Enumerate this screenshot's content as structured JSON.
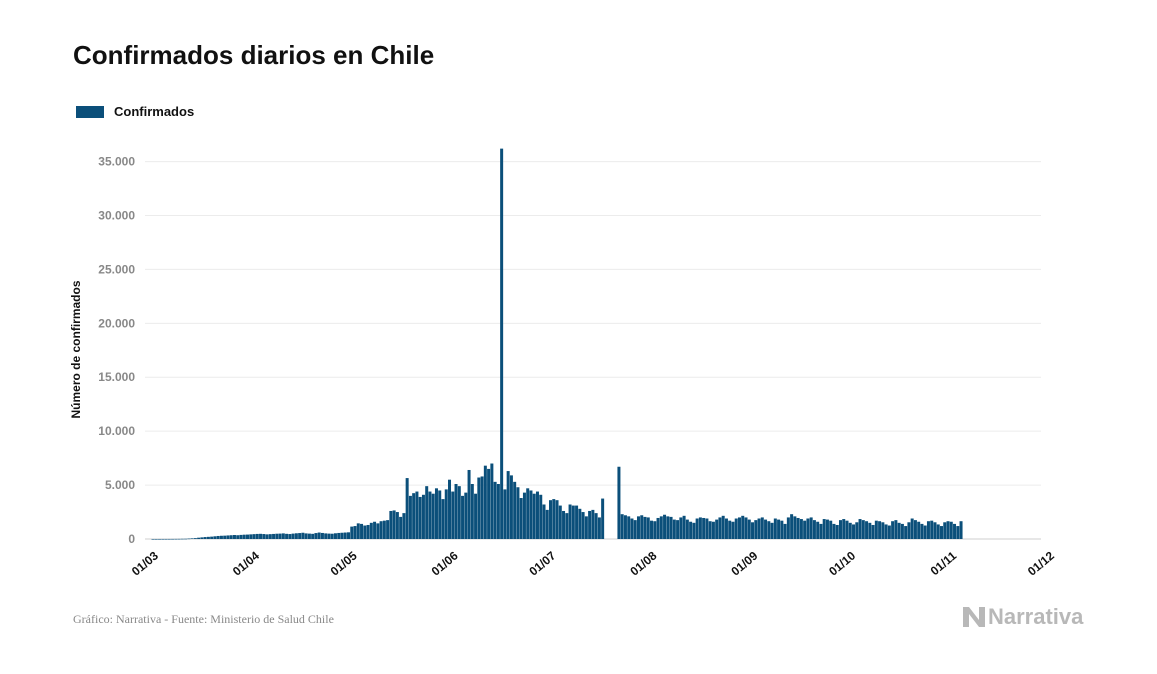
{
  "header": {
    "title": "Confirmados diarios en Chile"
  },
  "footer": {
    "source": "Gráfico: Narrativa - Fuente: Ministerio de Salud Chile"
  },
  "logo": {
    "text": "Narrativa",
    "icon": "narrativa-n-icon"
  },
  "chart_data": {
    "type": "bar",
    "title": "Confirmados diarios en Chile",
    "xlabel": "",
    "ylabel": "Número de confirmados",
    "legend": {
      "placement": "top-left",
      "entries": [
        "Confirmados"
      ]
    },
    "grid": true,
    "color": "#0b4f7a",
    "ylim": [
      0,
      37000
    ],
    "yticks": [
      0,
      5000,
      10000,
      15000,
      20000,
      25000,
      30000,
      35000
    ],
    "ytick_labels": [
      "0",
      "5.000",
      "10.000",
      "15.000",
      "20.000",
      "25.000",
      "30.000",
      "35.000"
    ],
    "xticks": [
      "01/03",
      "01/04",
      "01/05",
      "01/06",
      "01/07",
      "01/08",
      "01/09",
      "01/10",
      "01/11",
      "01/12"
    ],
    "start_date": "2020-03-03",
    "series": [
      {
        "name": "Confirmados",
        "values": [
          1,
          1,
          2,
          3,
          4,
          5,
          7,
          10,
          13,
          20,
          24,
          42,
          60,
          80,
          120,
          150,
          180,
          200,
          220,
          250,
          280,
          300,
          310,
          330,
          350,
          370,
          350,
          380,
          400,
          410,
          430,
          450,
          470,
          480,
          460,
          430,
          450,
          470,
          490,
          500,
          520,
          480,
          460,
          500,
          530,
          550,
          580,
          520,
          500,
          480,
          550,
          600,
          560,
          520,
          500,
          490,
          530,
          560,
          580,
          600,
          620,
          1150,
          1200,
          1450,
          1400,
          1250,
          1300,
          1500,
          1600,
          1450,
          1650,
          1700,
          1750,
          2600,
          2650,
          2500,
          2050,
          2400,
          5650,
          4000,
          4250,
          4400,
          3900,
          4100,
          4900,
          4400,
          4200,
          4700,
          4500,
          3700,
          4600,
          5500,
          4400,
          5100,
          4900,
          4000,
          4300,
          6400,
          5100,
          4200,
          5700,
          5800,
          6800,
          6500,
          7000,
          5300,
          5100,
          36200,
          4600,
          6300,
          5900,
          5300,
          4800,
          3800,
          4300,
          4700,
          4500,
          4200,
          4400,
          4100,
          3200,
          2700,
          3600,
          3700,
          3600,
          3100,
          2600,
          2400,
          3200,
          3100,
          3100,
          2800,
          2500,
          2100,
          2600,
          2700,
          2400,
          2000,
          3750,
          0,
          0,
          0,
          0,
          6700,
          2300,
          2200,
          2100,
          1900,
          1750,
          2100,
          2200,
          2050,
          2000,
          1700,
          1650,
          1950,
          2100,
          2250,
          2100,
          2050,
          1800,
          1750,
          2000,
          2150,
          1800,
          1600,
          1500,
          1900,
          2000,
          1950,
          1900,
          1650,
          1600,
          1800,
          2000,
          2150,
          1900,
          1700,
          1600,
          1900,
          2000,
          2150,
          2000,
          1800,
          1550,
          1750,
          1900,
          2000,
          1800,
          1650,
          1500,
          1900,
          1800,
          1700,
          1400,
          2000,
          2300,
          2100,
          1950,
          1850,
          1700,
          1900,
          2000,
          1750,
          1600,
          1400,
          1850,
          1800,
          1700,
          1400,
          1300,
          1750,
          1850,
          1700,
          1500,
          1350,
          1550,
          1850,
          1750,
          1650,
          1500,
          1300,
          1700,
          1650,
          1550,
          1350,
          1250,
          1650,
          1750,
          1500,
          1400,
          1200,
          1550,
          1900,
          1750,
          1600,
          1400,
          1250,
          1650,
          1700,
          1550,
          1350,
          1200,
          1550,
          1650,
          1600,
          1400,
          1200,
          1650
        ]
      }
    ]
  }
}
